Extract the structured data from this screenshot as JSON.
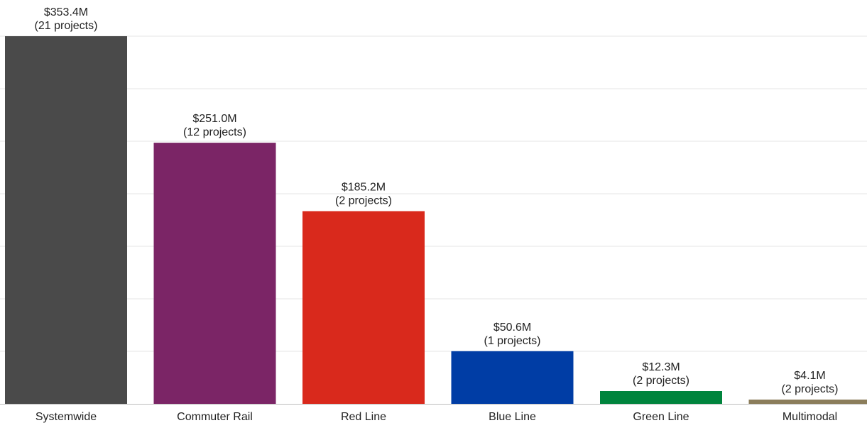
{
  "chart_data": {
    "type": "bar",
    "title": "",
    "xlabel": "",
    "ylabel": "",
    "ylim": [
      0,
      353.4
    ],
    "grid": true,
    "categories": [
      "Systemwide",
      "Commuter Rail",
      "Red Line",
      "Blue Line",
      "Green Line",
      "Multimodal"
    ],
    "values": [
      353.4,
      251.0,
      185.2,
      50.6,
      12.3,
      4.1
    ],
    "value_labels": [
      "$353.4M",
      "$251.0M",
      "$185.2M",
      "$50.6M",
      "$12.3M",
      "$4.1M"
    ],
    "count_labels": [
      "(21 projects)",
      "(12 projects)",
      "(2 projects)",
      "(1 projects)",
      "(2 projects)",
      "(2 projects)"
    ],
    "colors": [
      "#4a4a4a",
      "#7b2566",
      "#d9291c",
      "#003da5",
      "#00843d",
      "#8b7d5b"
    ]
  }
}
